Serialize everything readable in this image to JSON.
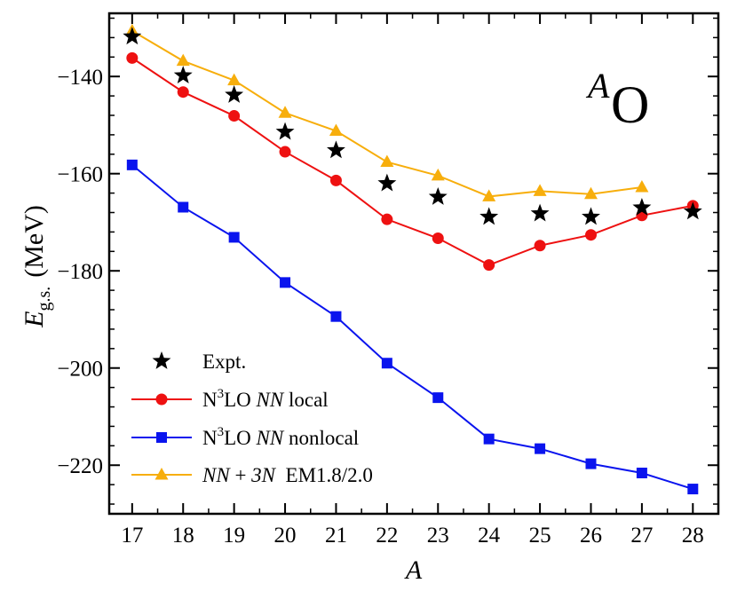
{
  "chart_data": {
    "type": "line",
    "xlabel": "A",
    "ylabel": {
      "main": "E",
      "subscript": "g.s.",
      "unit": "(MeV)"
    },
    "xlim": [
      16.55,
      28.5
    ],
    "ylim": [
      -230,
      -127
    ],
    "x_ticks": [
      "17",
      "18",
      "19",
      "20",
      "21",
      "22",
      "23",
      "24",
      "25",
      "26",
      "27",
      "28"
    ],
    "y_ticks": [
      "−220",
      "−200",
      "−180",
      "−160",
      "−140"
    ],
    "y_tick_values": [
      -220,
      -200,
      -180,
      -160,
      -140
    ],
    "grid": false,
    "legend_position": "bottom-left",
    "annotation": {
      "superscript": "A",
      "main": "O"
    },
    "series": [
      {
        "name": "Expt.",
        "name_parts": [
          "Expt."
        ],
        "style": "markers",
        "marker": "star",
        "color": "#000000",
        "x": [
          17,
          18,
          19,
          20,
          21,
          22,
          23,
          24,
          25,
          26,
          27,
          28
        ],
        "y": [
          -131.8,
          -139.8,
          -143.8,
          -151.4,
          -155.2,
          -162.0,
          -164.8,
          -168.9,
          -168.2,
          -168.9,
          -167.0,
          -167.8
        ]
      },
      {
        "name": "N3LO NN local",
        "name_parts": [
          "N",
          "3",
          "LO ",
          "NN",
          " local"
        ],
        "style": "line-markers",
        "marker": "circle",
        "color": "#ee1111",
        "x": [
          17,
          18,
          19,
          20,
          21,
          22,
          23,
          24,
          25,
          26,
          27,
          28
        ],
        "y": [
          -136.2,
          -143.2,
          -148.1,
          -155.5,
          -161.4,
          -169.4,
          -173.3,
          -178.8,
          -174.8,
          -172.6,
          -168.6,
          -166.6
        ]
      },
      {
        "name": "N3LO NN nonlocal",
        "name_parts": [
          "N",
          "3",
          "LO ",
          "NN",
          " nonlocal"
        ],
        "style": "line-markers",
        "marker": "square",
        "color": "#0a14ee",
        "x": [
          17,
          18,
          19,
          20,
          21,
          22,
          23,
          24,
          25,
          26,
          27,
          28
        ],
        "y": [
          -158.2,
          -166.9,
          -173.1,
          -182.4,
          -189.4,
          -199.0,
          -206.1,
          -214.6,
          -216.6,
          -219.7,
          -221.6,
          -224.9
        ]
      },
      {
        "name": "NN + 3N EM1.8/2.0",
        "name_parts": [
          "NN",
          " + ",
          "3N",
          "  EM1.8/2.0"
        ],
        "style": "line-markers",
        "marker": "triangle",
        "color": "#f7ae0c",
        "x": [
          17,
          18,
          19,
          20,
          21,
          22,
          23,
          24,
          25,
          26,
          27
        ],
        "y": [
          -130.6,
          -136.8,
          -140.8,
          -147.5,
          -151.2,
          -157.6,
          -160.4,
          -164.7,
          -163.6,
          -164.2,
          -162.8
        ]
      }
    ]
  }
}
